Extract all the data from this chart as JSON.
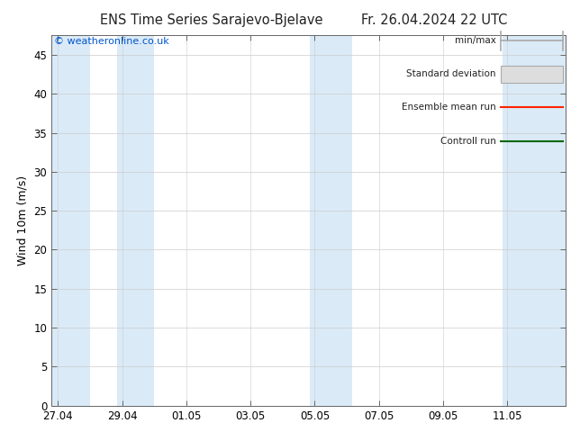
{
  "title_left": "ENS Time Series Sarajevo-Bjelave",
  "title_right": "Fr. 26.04.2024 22 UTC",
  "ylabel": "Wind 10m (m/s)",
  "watermark": "© weatheronline.co.uk",
  "watermark_color": "#0055cc",
  "ylim": [
    0,
    47.5
  ],
  "yticks": [
    0,
    5,
    10,
    15,
    20,
    25,
    30,
    35,
    40,
    45
  ],
  "background_color": "#ffffff",
  "plot_bg_color": "#ffffff",
  "band_color": "#daeaf7",
  "title_fontsize": 10.5,
  "tick_fontsize": 8.5,
  "ylabel_fontsize": 9,
  "watermark_fontsize": 8,
  "fig_width": 6.34,
  "fig_height": 4.9,
  "dpi": 100,
  "x_tick_labels": [
    "27.04",
    "29.04",
    "01.05",
    "03.05",
    "05.05",
    "07.05",
    "09.05",
    "11.05"
  ],
  "x_tick_positions": [
    0,
    2,
    4,
    6,
    8,
    10,
    12,
    14
  ],
  "x_lim": [
    -0.2,
    15.8
  ],
  "band_pairs": [
    [
      -0.2,
      1.0
    ],
    [
      1.85,
      3.0
    ],
    [
      7.85,
      9.15
    ],
    [
      13.85,
      15.8
    ]
  ],
  "legend_labels": [
    "min/max",
    "Standard deviation",
    "Ensemble mean run",
    "Controll run"
  ],
  "legend_line_colors": [
    "#aaaaaa",
    "#cccccc",
    "#ff2200",
    "#006600"
  ],
  "legend_fill_color": "#dddddd"
}
